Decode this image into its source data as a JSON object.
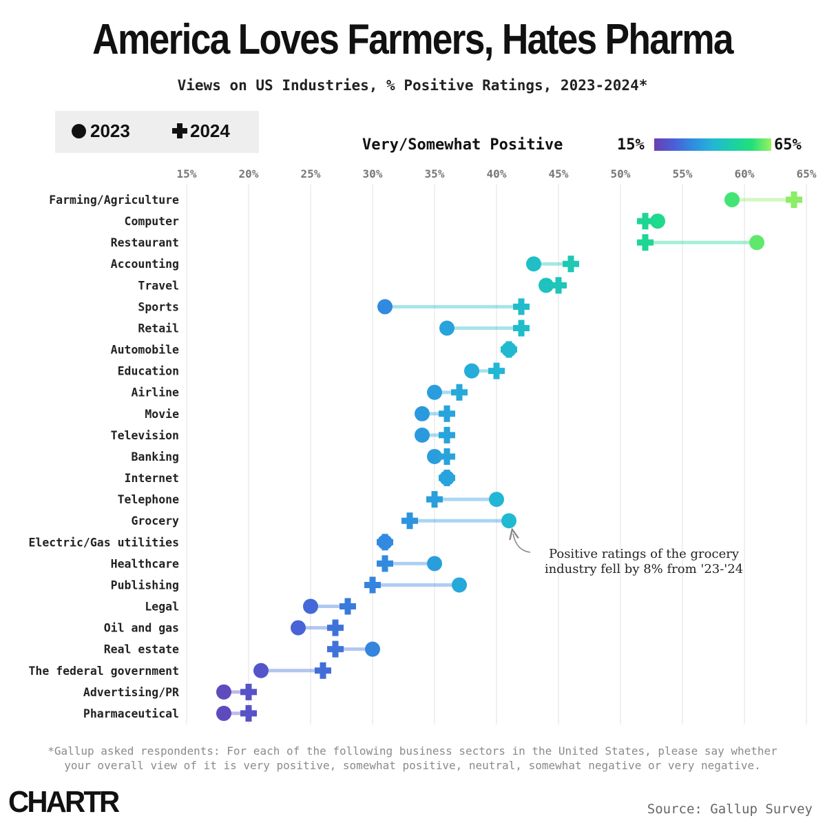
{
  "title": "America Loves Farmers, Hates Pharma",
  "subtitle": "Views on US Industries, % Positive Ratings, 2023-2024*",
  "legend": {
    "item_2023": "2023",
    "item_2024": "2024"
  },
  "color_scale": {
    "label": "Very/Somewhat Positive",
    "min_label": "15%",
    "max_label": "65%"
  },
  "annotation": "Positive ratings of the grocery industry fell by 8% from '23-'24",
  "footnote_line1": "*Gallup asked respondents: For each of the following business sectors in the United States, please say whether",
  "footnote_line2": "your overall view of it is very positive, somewhat positive, neutral, somewhat negative or very negative.",
  "logo": "CHARTR",
  "source": "Source: Gallup Survey",
  "chart_data": {
    "type": "dumbbell",
    "x_ticks": [
      "15%",
      "20%",
      "25%",
      "30%",
      "35%",
      "40%",
      "45%",
      "50%",
      "55%",
      "60%",
      "65%"
    ],
    "xlim": [
      15,
      65
    ],
    "series_names": [
      "2023",
      "2024"
    ],
    "categories": [
      "Farming/Agriculture",
      "Computer",
      "Restaurant",
      "Accounting",
      "Travel",
      "Sports",
      "Retail",
      "Automobile",
      "Education",
      "Airline",
      "Movie",
      "Television",
      "Banking",
      "Internet",
      "Telephone",
      "Grocery",
      "Electric/Gas utilities",
      "Healthcare",
      "Publishing",
      "Legal",
      "Oil and gas",
      "Real estate",
      "The federal government",
      "Advertising/PR",
      "Pharmaceutical"
    ],
    "values_2023": [
      59,
      53,
      61,
      43,
      44,
      31,
      36,
      41,
      38,
      35,
      34,
      34,
      35,
      36,
      40,
      41,
      31,
      35,
      37,
      25,
      24,
      30,
      21,
      18,
      18
    ],
    "values_2024": [
      64,
      52,
      52,
      46,
      45,
      42,
      42,
      41,
      40,
      37,
      36,
      36,
      36,
      36,
      35,
      33,
      31,
      31,
      30,
      28,
      27,
      27,
      26,
      20,
      20
    ],
    "grid": true
  }
}
